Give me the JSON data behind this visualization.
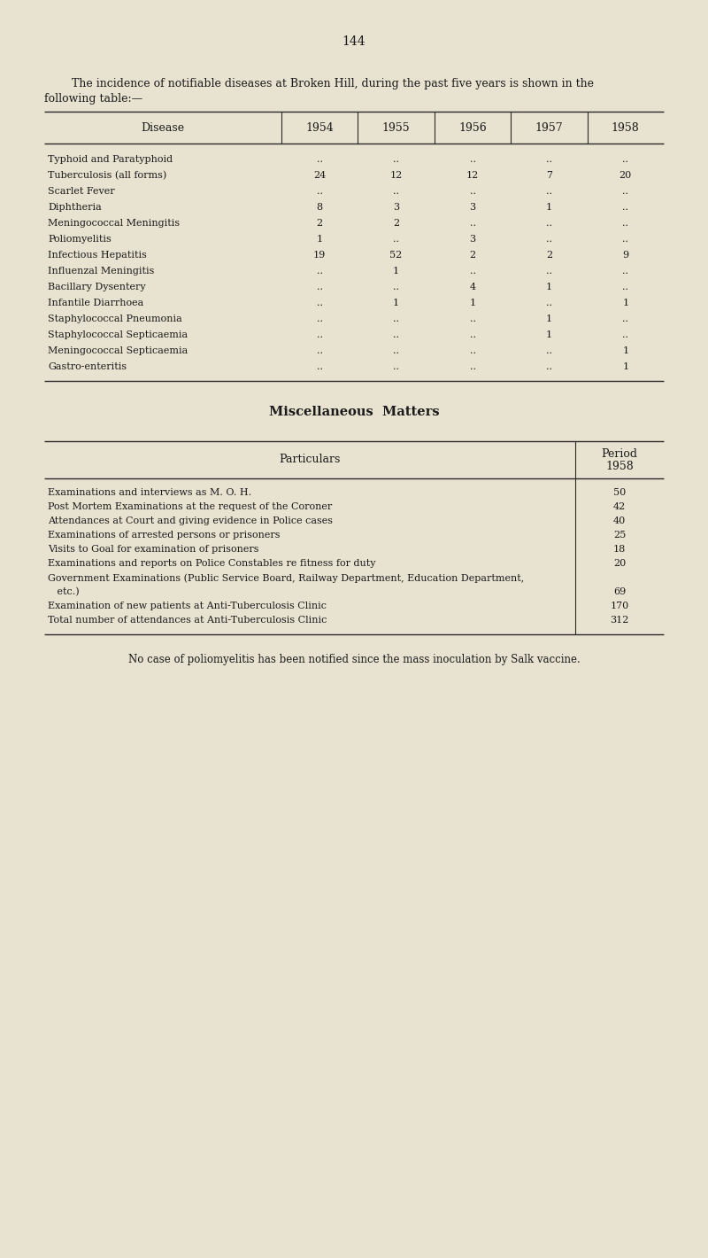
{
  "page_number": "144",
  "bg_color": "#e8e2d0",
  "intro_line1": "    The incidence of notifiable diseases at Broken Hill, during the past five years is shown in the",
  "intro_line2": "following table:—",
  "table1_header": [
    "Disease",
    "1954",
    "1955",
    "1956",
    "1957",
    "1958"
  ],
  "table1_rows": [
    [
      "Typhoid and Paratyphoid",
      "..",
      "..",
      "..",
      "..",
      ".."
    ],
    [
      "Tuberculosis (all forms)",
      "24",
      "12",
      "12",
      "7",
      "20"
    ],
    [
      "Scarlet Fever",
      "..",
      "..",
      "..",
      "..",
      ".."
    ],
    [
      "Diphtheria",
      "8",
      "3",
      "3",
      "1",
      ".."
    ],
    [
      "Meningococcal Meningitis",
      "2",
      "2",
      "..",
      "..",
      ".."
    ],
    [
      "Poliomyelitis",
      "1",
      "..",
      "3",
      "..",
      ".."
    ],
    [
      "Infectious Hepatitis",
      "19",
      "52",
      "2",
      "2",
      "9"
    ],
    [
      "Influenzal Meningitis",
      "..",
      "1",
      "..",
      "..",
      ".."
    ],
    [
      "Bacillary Dysentery",
      "..",
      "..",
      "4",
      "1",
      ".."
    ],
    [
      "Infantile Diarrhoea",
      "..",
      "1",
      "1",
      "..",
      "1"
    ],
    [
      "Staphylococcal Pneumonia",
      "..",
      "..",
      "..",
      "1",
      ".."
    ],
    [
      "Staphylococcal Septicaemia",
      "..",
      "..",
      "..",
      "1",
      ".."
    ],
    [
      "Meningococcal Septicaemia",
      "..",
      "..",
      "..",
      "..",
      "1"
    ],
    [
      "Gastro-enteritis",
      "..",
      "..",
      "..",
      "..",
      "1"
    ]
  ],
  "misc_title": "Miscellaneous  Matters",
  "table2_rows": [
    [
      "Examinations and interviews as M. O. H.",
      "50"
    ],
    [
      "Post Mortem Examinations at the request of the Coroner",
      "42"
    ],
    [
      "Attendances at Court and giving evidence in Police cases",
      "40"
    ],
    [
      "Examinations of arrested persons or prisoners",
      "25"
    ],
    [
      "Visits to Goal for examination of prisoners",
      "18"
    ],
    [
      "Examinations and reports on Police Constables re fitness for duty",
      "20"
    ],
    [
      "Government Examinations (Public Service Board, Railway Department, Education Department,",
      ""
    ],
    [
      "   etc.)",
      "69"
    ],
    [
      "Examination of new patients at Anti-Tuberculosis Clinic",
      "170"
    ],
    [
      "Total number of attendances at Anti-Tuberculosis Clinic",
      "312"
    ]
  ],
  "footer_text": "No case of poliomyelitis has been notified since the mass inoculation by Salk vaccine."
}
